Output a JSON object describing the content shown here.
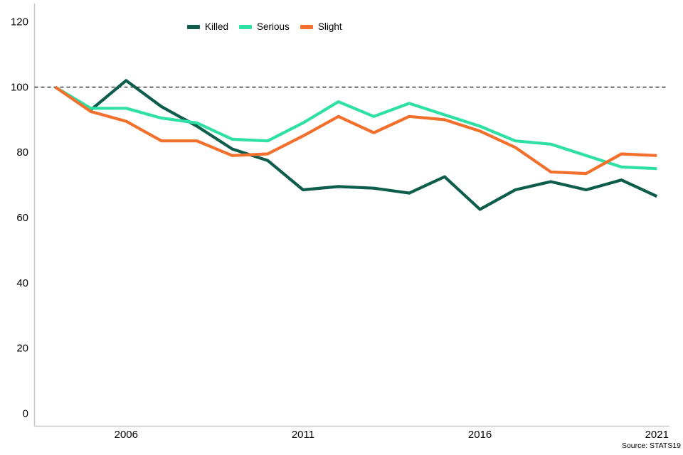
{
  "chart_data": {
    "type": "line",
    "title": "",
    "xlabel": "",
    "ylabel": "",
    "x": [
      2004,
      2005,
      2006,
      2007,
      2008,
      2009,
      2010,
      2011,
      2012,
      2013,
      2014,
      2015,
      2016,
      2017,
      2018,
      2019,
      2020,
      2021
    ],
    "series": [
      {
        "name": "Killed",
        "color": "#0d5d4d",
        "values": [
          100,
          93,
          102,
          94,
          88,
          81,
          77.5,
          68.5,
          69.5,
          69,
          67.5,
          72.5,
          62.5,
          68.5,
          71,
          68.5,
          71.5,
          66.5
        ]
      },
      {
        "name": "Serious",
        "color": "#2fe0a5",
        "values": [
          100,
          93.5,
          93.5,
          90.5,
          89,
          84,
          83.5,
          89,
          95.5,
          91,
          95,
          91.5,
          88,
          83.5,
          82.5,
          79,
          75.5,
          75
        ]
      },
      {
        "name": "Slight",
        "color": "#f3702c",
        "values": [
          100,
          92.5,
          89.5,
          83.5,
          83.5,
          79,
          79.5,
          85,
          91,
          86,
          91,
          90,
          86.5,
          81.5,
          74,
          73.5,
          79.5,
          79
        ]
      }
    ],
    "y_ticks": [
      0,
      20,
      40,
      60,
      80,
      100,
      120
    ],
    "ylim": [
      0,
      120
    ],
    "x_tick_years": [
      2006,
      2011,
      2016,
      2021
    ],
    "x_tick_labels": [
      "2006",
      "2011",
      "2016",
      "2021"
    ],
    "reference_line": {
      "value": 100,
      "style": "dashed",
      "color": "#000000"
    },
    "grid": false,
    "legend_position": "top",
    "axis_color": "#c9c9c9",
    "source_note": "Source: STATS19"
  }
}
